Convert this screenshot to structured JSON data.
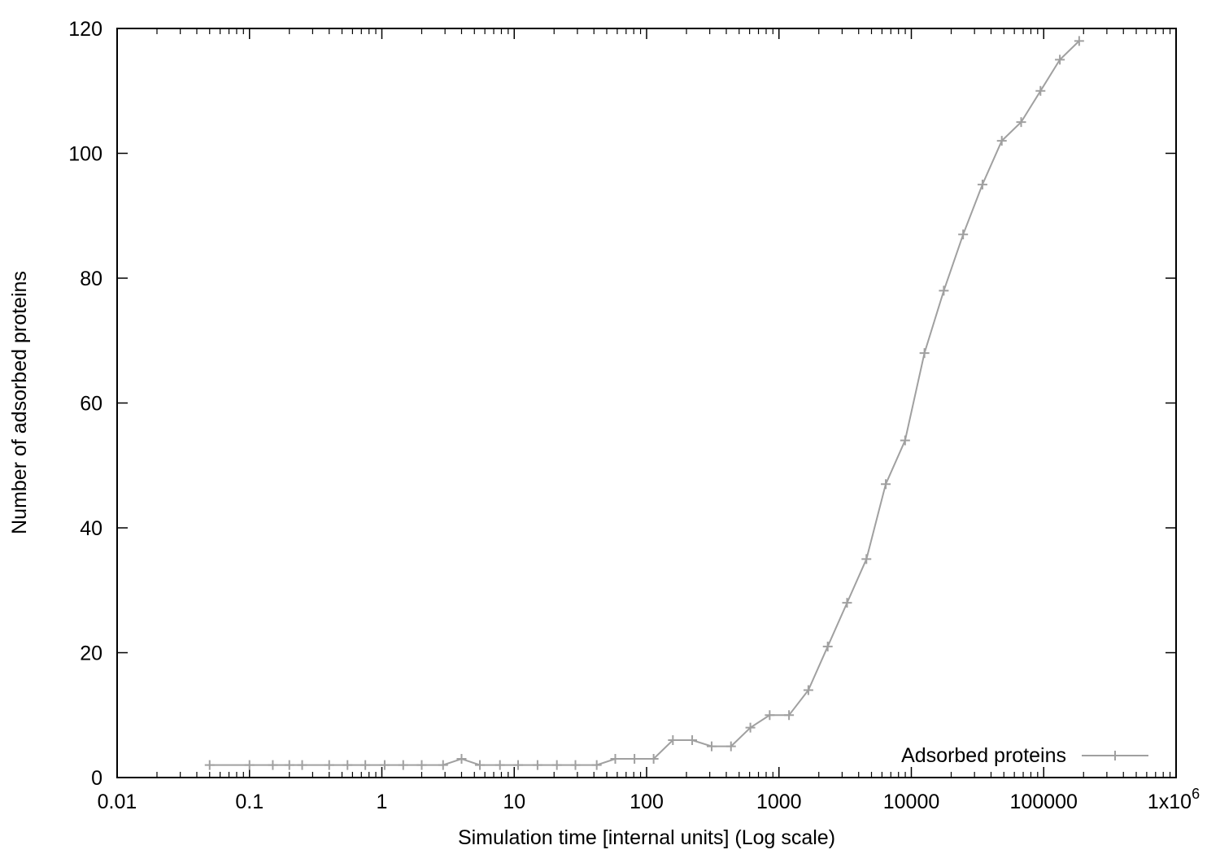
{
  "chart_data": {
    "type": "line",
    "title": "",
    "xlabel": "Simulation time [internal units] (Log scale)",
    "ylabel": "Number of adsorbed proteins",
    "xscale": "log",
    "xlim": [
      0.01,
      1000000
    ],
    "ylim": [
      0,
      120
    ],
    "grid": false,
    "legend_position": "bottom-right",
    "x_ticks": [
      {
        "value": 0.01,
        "label": "0.01"
      },
      {
        "value": 0.1,
        "label": "0.1"
      },
      {
        "value": 1,
        "label": "1"
      },
      {
        "value": 10,
        "label": "10"
      },
      {
        "value": 100,
        "label": "100"
      },
      {
        "value": 1000,
        "label": "1000"
      },
      {
        "value": 10000,
        "label": "10000"
      },
      {
        "value": 100000,
        "label": "100000"
      }
    ],
    "x_last_tick": {
      "value": 1000000,
      "label_base": "1x10",
      "label_exp": "6"
    },
    "y_ticks": [
      {
        "value": 0,
        "label": "0"
      },
      {
        "value": 20,
        "label": "20"
      },
      {
        "value": 40,
        "label": "40"
      },
      {
        "value": 60,
        "label": "60"
      },
      {
        "value": 80,
        "label": "80"
      },
      {
        "value": 100,
        "label": "100"
      },
      {
        "value": 120,
        "label": "120"
      }
    ],
    "series": [
      {
        "name": "Adsorbed proteins",
        "color": "#a0a0a0",
        "marker": "plus",
        "x": [
          0.05,
          0.1,
          0.15,
          0.2,
          0.25,
          0.4,
          0.55,
          0.75,
          1.05,
          1.45,
          2.0,
          2.9,
          4.0,
          5.5,
          7.8,
          10.7,
          15,
          21,
          29,
          42,
          58,
          81,
          113,
          158,
          221,
          310,
          434,
          608,
          851,
          1191,
          1668,
          2335,
          3269,
          4577,
          6408,
          8971,
          12560,
          17580,
          24610,
          34460,
          48240,
          67540,
          94560,
          132400,
          185300
        ],
        "y": [
          2,
          2,
          2,
          2,
          2,
          2,
          2,
          2,
          2,
          2,
          2,
          2,
          3,
          2,
          2,
          2,
          2,
          2,
          2,
          2,
          3,
          3,
          3,
          6,
          6,
          5,
          5,
          8,
          10,
          10,
          14,
          21,
          28,
          35,
          47,
          54,
          68,
          78,
          87,
          95,
          102,
          105,
          110,
          115,
          118
        ]
      }
    ]
  }
}
